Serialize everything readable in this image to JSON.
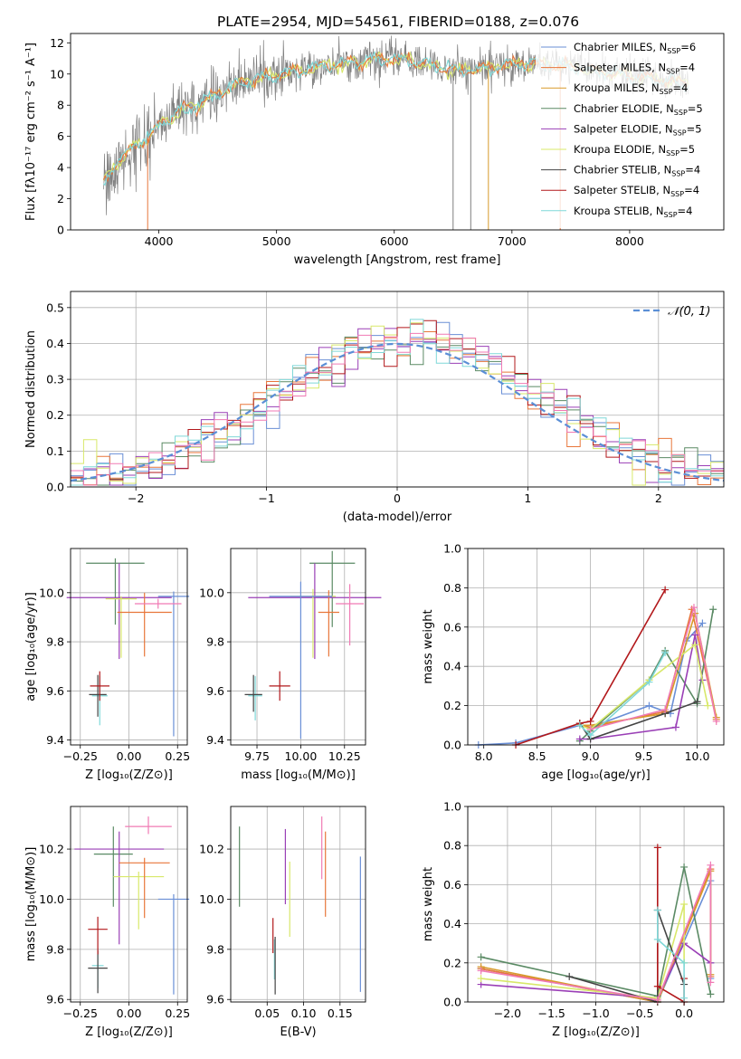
{
  "figure": {
    "title": "PLATE=2954, MJD=54561, FIBERID=0188, z=0.076"
  },
  "colors": {
    "chabrier_miles": "#6a8fd6",
    "salpeter_miles": "#e8763a",
    "kroupa_miles": "#d89a2a",
    "chabrier_elodie": "#5a8a64",
    "salpeter_elodie": "#9a3fb6",
    "kroupa_elodie": "#d8e86a",
    "chabrier_stelib": "#444444",
    "salpeter_stelib": "#b2181b",
    "kroupa_stelib": "#7fd8d8",
    "data": "#7f7f7f",
    "normal": "#5b8fd6",
    "pink": "#f07ab4"
  },
  "chart_data": [
    {
      "id": "spectrum",
      "type": "line",
      "xlabel": "wavelength [Angstrom, rest frame]",
      "ylabel": "Flux [fλ10⁻¹⁷ erg cm⁻² s⁻¹ A⁻¹]",
      "xlim": [
        3250,
        8800
      ],
      "ylim": [
        0,
        12.6
      ],
      "xticks": [
        4000,
        5000,
        6000,
        7000,
        8000
      ],
      "yticks": [
        0,
        2,
        4,
        6,
        8,
        10,
        12
      ],
      "grid": false,
      "legend_position": "right",
      "legend": [
        {
          "label": "Chabrier MILES, N",
          "sub": "SSP",
          "suffix": "=6",
          "color_key": "chabrier_miles"
        },
        {
          "label": "Salpeter MILES, N",
          "sub": "SSP",
          "suffix": "=4",
          "color_key": "salpeter_miles"
        },
        {
          "label": "Kroupa MILES, N",
          "sub": "SSP",
          "suffix": "=4",
          "color_key": "kroupa_miles"
        },
        {
          "label": "Chabrier ELODIE, N",
          "sub": "SSP",
          "suffix": "=5",
          "color_key": "chabrier_elodie"
        },
        {
          "label": "Salpeter ELODIE, N",
          "sub": "SSP",
          "suffix": "=5",
          "color_key": "salpeter_elodie"
        },
        {
          "label": "Kroupa ELODIE, N",
          "sub": "SSP",
          "suffix": "=5",
          "color_key": "kroupa_elodie"
        },
        {
          "label": "Chabrier STELIB, N",
          "sub": "SSP",
          "suffix": "=4",
          "color_key": "chabrier_stelib"
        },
        {
          "label": "Salpeter STELIB, N",
          "sub": "SSP",
          "suffix": "=4",
          "color_key": "salpeter_stelib"
        },
        {
          "label": "Kroupa STELIB, N",
          "sub": "SSP",
          "suffix": "=4",
          "color_key": "kroupa_stelib"
        }
      ],
      "continuum_model": {
        "x": [
          3530,
          3600,
          3700,
          3800,
          3900,
          4000,
          4100,
          4200,
          4300,
          4400,
          4500,
          4700,
          4900,
          5100,
          5300,
          5500,
          5700,
          5900,
          6100,
          6300,
          6500,
          6700,
          6900,
          7100,
          7300,
          7500,
          7700,
          7900,
          8100,
          8300,
          8500
        ],
        "y": [
          3.0,
          4.0,
          4.6,
          5.5,
          5.8,
          6.8,
          7.2,
          7.6,
          8.0,
          8.3,
          8.8,
          9.4,
          9.8,
          10.1,
          10.4,
          10.6,
          10.8,
          11.0,
          10.9,
          10.6,
          10.2,
          10.3,
          10.5,
          10.7,
          10.6,
          10.5,
          10.2,
          10.0,
          9.8,
          9.6,
          9.4
        ]
      },
      "data_range": [
        3530,
        8500
      ],
      "vertical_dropouts": [
        {
          "x": 3905,
          "color_key": "salpeter_miles"
        },
        {
          "x": 6500,
          "color_key": "data"
        },
        {
          "x": 6650,
          "color_key": "data"
        },
        {
          "x": 6800,
          "color_key": "kroupa_miles"
        },
        {
          "x": 7410,
          "color_key": "salpeter_miles"
        }
      ]
    },
    {
      "id": "residuals",
      "type": "line",
      "xlabel": "(data-model)/error",
      "ylabel": "Normed distribution",
      "xlim": [
        -2.5,
        2.5
      ],
      "ylim": [
        0,
        0.545
      ],
      "xticks": [
        -2,
        -1,
        0,
        1,
        2
      ],
      "yticks": [
        0.0,
        0.1,
        0.2,
        0.3,
        0.4,
        0.5
      ],
      "grid": true,
      "legend_position": "top-right",
      "legend_label": "𝒩(0, 1)",
      "bin_width": 0.1,
      "normal_curve": {
        "mean": 0,
        "sigma": 1
      }
    },
    {
      "id": "age-vs-Z",
      "type": "scatter",
      "xlabel": "Z [log₁₀(Z/Z⊙)]",
      "ylabel": "age  [log₁₀(age/yr)]",
      "xlim": [
        -0.3,
        0.3
      ],
      "ylim": [
        9.38,
        10.18
      ],
      "xticks": [
        -0.25,
        0.0,
        0.25
      ],
      "xticklabels": [
        "−0.25",
        "0.00",
        "0.25"
      ],
      "yticks": [
        9.4,
        9.6,
        9.8,
        10.0
      ],
      "grid": true,
      "points": [
        {
          "x": -0.15,
          "y": 9.58,
          "xerr": 0.04,
          "yerr": [
            0.12,
            0.08
          ],
          "color_key": "kroupa_stelib"
        },
        {
          "x": -0.16,
          "y": 9.585,
          "xerr": 0.045,
          "yerr": [
            0.09,
            0.08
          ],
          "color_key": "chabrier_stelib"
        },
        {
          "x": -0.15,
          "y": 9.62,
          "xerr": 0.05,
          "yerr": [
            0.06,
            0.06
          ],
          "color_key": "salpeter_stelib"
        },
        {
          "x": -0.07,
          "y": 10.12,
          "xerr": 0.15,
          "yerr": [
            0.25,
            0.02
          ],
          "color_key": "chabrier_elodie"
        },
        {
          "x": -0.05,
          "y": 9.98,
          "xerr": 0.27,
          "yerr": [
            0.25,
            0.14
          ],
          "color_key": "salpeter_elodie"
        },
        {
          "x": -0.04,
          "y": 9.975,
          "xerr": 0.08,
          "yerr": [
            0.24,
            0.01
          ],
          "color_key": "kroupa_elodie"
        },
        {
          "x": 0.08,
          "y": 9.92,
          "xerr": 0.14,
          "yerr": [
            0.18,
            0.08
          ],
          "color_key": "salpeter_miles"
        },
        {
          "x": 0.23,
          "y": 9.985,
          "xerr": 0.08,
          "yerr": [
            0.57,
            0.02
          ],
          "color_key": "chabrier_miles"
        },
        {
          "x": 0.15,
          "y": 9.955,
          "xerr": 0.12,
          "yerr": [
            0.02,
            0.02
          ],
          "color_key": "pink"
        }
      ]
    },
    {
      "id": "age-vs-mass",
      "type": "scatter",
      "xlabel": "mass [log₁₀(M/M⊙)]",
      "ylabel": "",
      "xlim": [
        9.6,
        10.37
      ],
      "ylim": [
        9.38,
        10.18
      ],
      "xticks": [
        9.75,
        10.0,
        10.25
      ],
      "xticklabels": [
        "9.75",
        "10.00",
        "10.25"
      ],
      "yticks": [
        9.4,
        9.6,
        9.8,
        10.0
      ],
      "grid": true,
      "points": [
        {
          "x": 9.74,
          "y": 9.58,
          "xerr": 0.04,
          "yerr": [
            0.1,
            0.08
          ],
          "color_key": "kroupa_stelib"
        },
        {
          "x": 9.73,
          "y": 9.585,
          "xerr": 0.05,
          "yerr": [
            0.07,
            0.08
          ],
          "color_key": "chabrier_stelib"
        },
        {
          "x": 9.88,
          "y": 9.62,
          "xerr": 0.06,
          "yerr": [
            0.06,
            0.06
          ],
          "color_key": "salpeter_stelib"
        },
        {
          "x": 10.18,
          "y": 10.12,
          "xerr": 0.13,
          "yerr": [
            0.26,
            0.05
          ],
          "color_key": "chabrier_elodie"
        },
        {
          "x": 10.08,
          "y": 9.98,
          "xerr": 0.38,
          "yerr": [
            0.25,
            0.14
          ],
          "color_key": "salpeter_elodie"
        },
        {
          "x": 10.07,
          "y": 9.985,
          "xerr": 0.13,
          "yerr": [
            0.25,
            0.03
          ],
          "color_key": "kroupa_elodie"
        },
        {
          "x": 10.16,
          "y": 9.92,
          "xerr": 0.06,
          "yerr": [
            0.18,
            0.09
          ],
          "color_key": "salpeter_miles"
        },
        {
          "x": 10.0,
          "y": 9.985,
          "xerr": 0.18,
          "yerr": [
            0.58,
            0.06
          ],
          "color_key": "chabrier_miles"
        },
        {
          "x": 10.28,
          "y": 9.955,
          "xerr": 0.08,
          "yerr": [
            0.17,
            0.08
          ],
          "color_key": "pink"
        }
      ]
    },
    {
      "id": "massweight-vs-age",
      "type": "line",
      "xlabel": "age  [log₁₀(age/yr)]",
      "ylabel": "mass weight",
      "xlim": [
        7.85,
        10.25
      ],
      "ylim": [
        0,
        1.0
      ],
      "xticks": [
        8.0,
        8.5,
        9.0,
        9.5,
        10.0
      ],
      "yticks": [
        0.0,
        0.2,
        0.4,
        0.6,
        0.8,
        1.0
      ],
      "grid": true,
      "series": [
        {
          "color_key": "chabrier_miles",
          "x": [
            7.95,
            8.3,
            8.9,
            9.0,
            9.55,
            9.75,
            9.9,
            10.05
          ],
          "y": [
            0.0,
            0.01,
            0.1,
            0.09,
            0.2,
            0.16,
            0.53,
            0.62
          ]
        },
        {
          "color_key": "salpeter_miles",
          "x": [
            8.9,
            9.0,
            9.7,
            9.95,
            10.18
          ],
          "y": [
            0.1,
            0.09,
            0.17,
            0.69,
            0.13
          ]
        },
        {
          "color_key": "kroupa_miles",
          "x": [
            8.9,
            9.0,
            9.7,
            9.98,
            10.18
          ],
          "y": [
            0.1,
            0.1,
            0.16,
            0.67,
            0.14
          ]
        },
        {
          "color_key": "chabrier_elodie",
          "x": [
            8.9,
            9.0,
            9.55,
            9.7,
            10.0,
            10.15
          ],
          "y": [
            0.02,
            0.07,
            0.33,
            0.48,
            0.21,
            0.69
          ]
        },
        {
          "color_key": "salpeter_elodie",
          "x": [
            8.9,
            9.0,
            9.8,
            9.98,
            10.05
          ],
          "y": [
            0.03,
            0.03,
            0.09,
            0.56,
            0.33
          ]
        },
        {
          "color_key": "kroupa_elodie",
          "x": [
            8.9,
            9.0,
            9.55,
            9.98,
            10.1
          ],
          "y": [
            0.1,
            0.08,
            0.33,
            0.51,
            0.2
          ]
        },
        {
          "color_key": "chabrier_stelib",
          "x": [
            8.9,
            9.0,
            9.7,
            10.0
          ],
          "y": [
            0.11,
            0.03,
            0.16,
            0.22
          ]
        },
        {
          "color_key": "salpeter_stelib",
          "x": [
            8.3,
            8.9,
            9.0,
            9.7
          ],
          "y": [
            0.0,
            0.11,
            0.12,
            0.79
          ]
        },
        {
          "color_key": "kroupa_stelib",
          "x": [
            8.9,
            9.0,
            9.55,
            9.7
          ],
          "y": [
            0.1,
            0.05,
            0.32,
            0.47
          ]
        },
        {
          "color_key": "pink",
          "x": [
            9.0,
            9.7,
            9.97,
            10.18
          ],
          "y": [
            0.08,
            0.18,
            0.7,
            0.12
          ]
        }
      ]
    },
    {
      "id": "mass-vs-Z",
      "type": "scatter",
      "xlabel": "Z [log₁₀(Z/Z⊙)]",
      "ylabel": "mass [log₁₀(M/M⊙)]",
      "xlim": [
        -0.3,
        0.3
      ],
      "ylim": [
        9.59,
        10.37
      ],
      "xticks": [
        -0.25,
        0.0,
        0.25
      ],
      "xticklabels": [
        "−0.25",
        "0.00",
        "0.25"
      ],
      "yticks": [
        9.6,
        9.8,
        10.0,
        10.2
      ],
      "grid": true,
      "points": [
        {
          "x": -0.16,
          "y": 9.735,
          "xerr": 0.03,
          "yerr": [
            0.09,
            0.07
          ],
          "color_key": "kroupa_stelib"
        },
        {
          "x": -0.16,
          "y": 9.725,
          "xerr": 0.05,
          "yerr": [
            0.1,
            0.07
          ],
          "color_key": "chabrier_stelib"
        },
        {
          "x": -0.16,
          "y": 9.88,
          "xerr": 0.05,
          "yerr": [
            0.1,
            0.05
          ],
          "color_key": "salpeter_stelib"
        },
        {
          "x": -0.08,
          "y": 10.18,
          "xerr": 0.1,
          "yerr": [
            0.21,
            0.11
          ],
          "color_key": "chabrier_elodie"
        },
        {
          "x": -0.05,
          "y": 10.2,
          "xerr": 0.23,
          "yerr": [
            0.38,
            0.07
          ],
          "color_key": "salpeter_elodie"
        },
        {
          "x": 0.05,
          "y": 10.09,
          "xerr": 0.13,
          "yerr": [
            0.21,
            0.02
          ],
          "color_key": "kroupa_elodie"
        },
        {
          "x": 0.08,
          "y": 10.145,
          "xerr": 0.13,
          "yerr": [
            0.22,
            0.02
          ],
          "color_key": "salpeter_miles"
        },
        {
          "x": 0.23,
          "y": 10.0,
          "xerr": 0.08,
          "yerr": [
            0.38,
            0.02
          ],
          "color_key": "chabrier_miles"
        },
        {
          "x": 0.1,
          "y": 10.29,
          "xerr": 0.12,
          "yerr": [
            0.03,
            0.04
          ],
          "color_key": "pink"
        }
      ]
    },
    {
      "id": "ebv",
      "type": "scatter",
      "xlabel": "E(B-V)",
      "ylabel": "",
      "xlim": [
        0.0,
        0.185
      ],
      "ylim": [
        9.59,
        10.37
      ],
      "xticks": [
        0.05,
        0.1,
        0.15
      ],
      "xticklabels": [
        "0.05",
        "0.10",
        "0.15"
      ],
      "yticks": [
        9.6,
        9.8,
        10.0,
        10.2
      ],
      "grid": true,
      "points": [
        {
          "x": 0.012,
          "y": 10.13,
          "yerr": [
            0.16,
            0.16
          ],
          "color_key": "chabrier_elodie"
        },
        {
          "x": 0.058,
          "y": 9.855,
          "yerr": [
            0.07,
            0.07
          ],
          "color_key": "salpeter_stelib"
        },
        {
          "x": 0.06,
          "y": 9.8,
          "yerr": [
            0.12,
            0.04
          ],
          "color_key": "kroupa_stelib"
        },
        {
          "x": 0.061,
          "y": 9.79,
          "yerr": [
            0.17,
            0.06
          ],
          "color_key": "chabrier_stelib"
        },
        {
          "x": 0.075,
          "y": 10.13,
          "yerr": [
            0.15,
            0.15
          ],
          "color_key": "salpeter_elodie"
        },
        {
          "x": 0.081,
          "y": 10.0,
          "yerr": [
            0.15,
            0.15
          ],
          "color_key": "kroupa_elodie"
        },
        {
          "x": 0.125,
          "y": 10.2,
          "yerr": [
            0.12,
            0.13
          ],
          "color_key": "pink"
        },
        {
          "x": 0.13,
          "y": 10.1,
          "yerr": [
            0.17,
            0.17
          ],
          "color_key": "salpeter_miles"
        },
        {
          "x": 0.178,
          "y": 9.9,
          "yerr": [
            0.27,
            0.27
          ],
          "color_key": "chabrier_miles"
        }
      ]
    },
    {
      "id": "massweight-vs-Z",
      "type": "line",
      "xlabel": "Z [log₁₀(Z/Z⊙)]",
      "ylabel": "mass weight",
      "xlim": [
        -2.45,
        0.45
      ],
      "ylim": [
        0,
        1.0
      ],
      "xticks": [
        -2.0,
        -1.5,
        -1.0,
        -0.5,
        0.0
      ],
      "xticklabels": [
        "−2.0",
        "−1.5",
        "−1.0",
        "−0.5",
        "0.0"
      ],
      "yticks": [
        0.0,
        0.2,
        0.4,
        0.6,
        0.8,
        1.0
      ],
      "grid": true,
      "series": [
        {
          "color_key": "chabrier_miles",
          "x": [
            -2.3,
            -0.3,
            0.3,
            0.3,
            0.3
          ],
          "y": [
            0.17,
            0.0,
            0.62,
            0.2,
            0.12
          ]
        },
        {
          "color_key": "salpeter_miles",
          "x": [
            -2.3,
            -0.3,
            0.3,
            0.3
          ],
          "y": [
            0.17,
            0.0,
            0.68,
            0.13
          ]
        },
        {
          "color_key": "kroupa_miles",
          "x": [
            -2.3,
            -0.3,
            0.3,
            0.3
          ],
          "y": [
            0.18,
            0.0,
            0.67,
            0.14
          ]
        },
        {
          "color_key": "chabrier_elodie",
          "x": [
            -2.3,
            -0.3,
            0.0,
            0.3
          ],
          "y": [
            0.23,
            0.03,
            0.69,
            0.04
          ]
        },
        {
          "color_key": "salpeter_elodie",
          "x": [
            -2.3,
            -0.3,
            0.0,
            0.3
          ],
          "y": [
            0.09,
            0.02,
            0.3,
            0.2
          ]
        },
        {
          "color_key": "kroupa_elodie",
          "x": [
            -2.3,
            -0.3,
            0.0,
            0.0
          ],
          "y": [
            0.12,
            0.02,
            0.5,
            0.2
          ]
        },
        {
          "color_key": "chabrier_stelib",
          "x": [
            -1.3,
            -0.3,
            -0.3,
            0.0
          ],
          "y": [
            0.13,
            0.0,
            0.47,
            0.09
          ]
        },
        {
          "color_key": "salpeter_stelib",
          "x": [
            -0.3,
            -0.3,
            0.0,
            0.0
          ],
          "y": [
            0.79,
            0.08,
            0.0,
            0.12
          ]
        },
        {
          "color_key": "kroupa_stelib",
          "x": [
            -0.3,
            -0.3,
            0.0,
            0.0
          ],
          "y": [
            0.47,
            0.32,
            0.2,
            0.02
          ]
        },
        {
          "color_key": "pink",
          "x": [
            -2.3,
            -0.3,
            0.3,
            0.3
          ],
          "y": [
            0.16,
            0.01,
            0.7,
            0.1
          ]
        }
      ]
    }
  ]
}
